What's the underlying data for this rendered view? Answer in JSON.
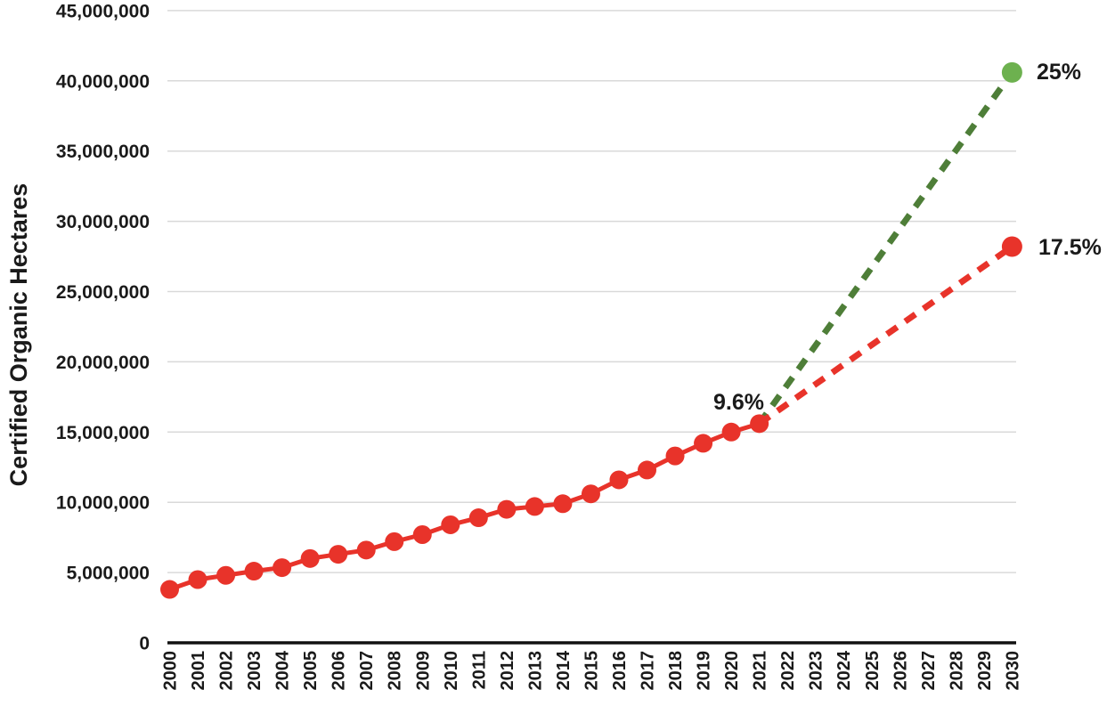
{
  "chart_data": {
    "type": "line",
    "title": "",
    "xlabel": "",
    "ylabel": "Certified Organic Hectares",
    "ylim": [
      0,
      45000000
    ],
    "ytick_step": 5000000,
    "y_tick_labels": [
      "0",
      "5,000,000",
      "10,000,000",
      "15,000,000",
      "20,000,000",
      "25,000,000",
      "30,000,000",
      "35,000,000",
      "40,000,000",
      "45,000,000"
    ],
    "x_tick_labels": [
      "2000",
      "2001",
      "2002",
      "2003",
      "2004",
      "2005",
      "2006",
      "2007",
      "2008",
      "2009",
      "2010",
      "2011",
      "2012",
      "2013",
      "2014",
      "2015",
      "2016",
      "2017",
      "2018",
      "2019",
      "2020",
      "2021",
      "2022",
      "2023",
      "2024",
      "2025",
      "2026",
      "2027",
      "2028",
      "2029",
      "2030"
    ],
    "grid": true,
    "legend": "none",
    "series": [
      {
        "name": "certified-organic-hectares-historical",
        "style": "solid",
        "color": "#E8332A",
        "dot": "all",
        "x": [
          2000,
          2001,
          2002,
          2003,
          2004,
          2005,
          2006,
          2007,
          2008,
          2009,
          2010,
          2011,
          2012,
          2013,
          2014,
          2015,
          2016,
          2017,
          2018,
          2019,
          2020,
          2021
        ],
        "values": [
          3800000,
          4500000,
          4800000,
          5100000,
          5350000,
          6000000,
          6300000,
          6600000,
          7200000,
          7700000,
          8400000,
          8900000,
          9500000,
          9700000,
          9900000,
          10600000,
          11600000,
          12300000,
          13300000,
          14200000,
          15000000,
          15600000
        ]
      },
      {
        "name": "projection-25-percent-target",
        "style": "dashed",
        "color": "#4E7E38",
        "dot_color": "#6DB14F",
        "dot": "end",
        "x": [
          2021,
          2030
        ],
        "values": [
          15600000,
          40600000
        ],
        "label": "25%",
        "label_color": "#4E7E38"
      },
      {
        "name": "projection-17-5-percent-trend",
        "style": "dashed",
        "color": "#E8332A",
        "dot_color": "#E8332A",
        "dot": "end",
        "x": [
          2021,
          2030
        ],
        "values": [
          15600000,
          28200000
        ],
        "label": "17.5%",
        "label_color": "#E8332A"
      }
    ],
    "annotations": [
      {
        "text": "9.6%",
        "color": "#E8332A",
        "x_year": 2021,
        "value": 15600000,
        "position": "above-left-of-2021-point"
      }
    ],
    "colors": {
      "historical_red": "#E8332A",
      "projection_green_line": "#4E7E38",
      "projection_green_dot": "#6DB14F",
      "gridline_gray": "#D9D9D9",
      "axis_black": "#111111"
    }
  }
}
